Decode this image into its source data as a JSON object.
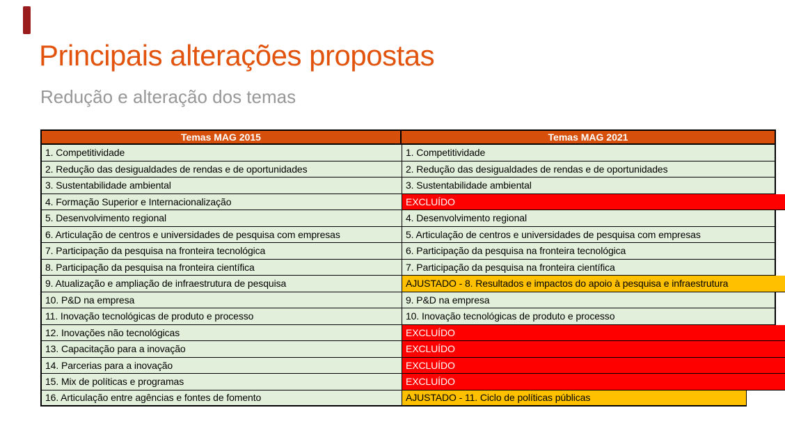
{
  "slide": {
    "title": "Principais alterações propostas",
    "subtitle": "Redução e alteração dos temas"
  },
  "colors": {
    "title_text": "#E2540D",
    "subtitle_text": "#979797",
    "accent_bar": "#9B1C1C",
    "header_bg": "#D6500B",
    "header_text": "#FFFFFF",
    "row_bg": "#E2EFDA",
    "row_text": "#000000",
    "excluded_bg": "#FF0000",
    "excluded_text": "#FFFFFF",
    "adjusted_bg": "#FFC000",
    "adjusted_text": "#000000",
    "border": "#000000"
  },
  "table": {
    "headers": [
      "Temas MAG 2015",
      "Temas MAG 2021"
    ],
    "rows": [
      {
        "mag2015": "1. Competitividade",
        "mag2021": "1. Competitividade",
        "status": "kept"
      },
      {
        "mag2015": "2. Redução das desigualdades de rendas e de oportunidades",
        "mag2021": "2. Redução das desigualdades de rendas e de oportunidades",
        "status": "kept"
      },
      {
        "mag2015": "3. Sustentabilidade ambiental",
        "mag2021": "3. Sustentabilidade ambiental",
        "status": "kept"
      },
      {
        "mag2015": "4. Formação Superior e Internacionalização",
        "mag2021": "EXCLUÍDO",
        "status": "excluded"
      },
      {
        "mag2015": "5. Desenvolvimento regional",
        "mag2021": "4. Desenvolvimento regional",
        "status": "kept"
      },
      {
        "mag2015": "6. Articulação de centros e universidades de pesquisa com empresas",
        "mag2021": "5. Articulação de centros e universidades de pesquisa com empresas",
        "status": "kept"
      },
      {
        "mag2015": "7. Participação da pesquisa na fronteira tecnológica",
        "mag2021": "6. Participação da pesquisa na fronteira tecnológica",
        "status": "kept"
      },
      {
        "mag2015": "8. Participação da pesquisa na fronteira científica",
        "mag2021": "7. Participação da pesquisa na fronteira científica",
        "status": "kept"
      },
      {
        "mag2015": "9. Atualização e ampliação de infraestrutura de pesquisa",
        "mag2021": "AJUSTADO - 8. Resultados e impactos do apoio à pesquisa e infraestrutura",
        "status": "adjusted"
      },
      {
        "mag2015": "10. P&D na empresa",
        "mag2021": "9. P&D na empresa",
        "status": "kept"
      },
      {
        "mag2015": "11. Inovação tecnológicas de produto e processo",
        "mag2021": "10. Inovação tecnológicas de produto e processo",
        "status": "kept"
      },
      {
        "mag2015": "12. Inovações não tecnológicas",
        "mag2021": "EXCLUÍDO",
        "status": "excluded"
      },
      {
        "mag2015": "13. Capacitação para a inovação",
        "mag2021": "EXCLUÍDO",
        "status": "excluded"
      },
      {
        "mag2015": "14. Parcerias para a inovação",
        "mag2021": "EXCLUÍDO",
        "status": "excluded"
      },
      {
        "mag2015": "15. Mix de políticas e programas",
        "mag2021": "EXCLUÍDO",
        "status": "excluded"
      },
      {
        "mag2015": "16. Articulação entre agências e fontes de fomento",
        "mag2021": "AJUSTADO - 11. Ciclo de políticas públicas",
        "status": "adjusted_short"
      }
    ]
  }
}
